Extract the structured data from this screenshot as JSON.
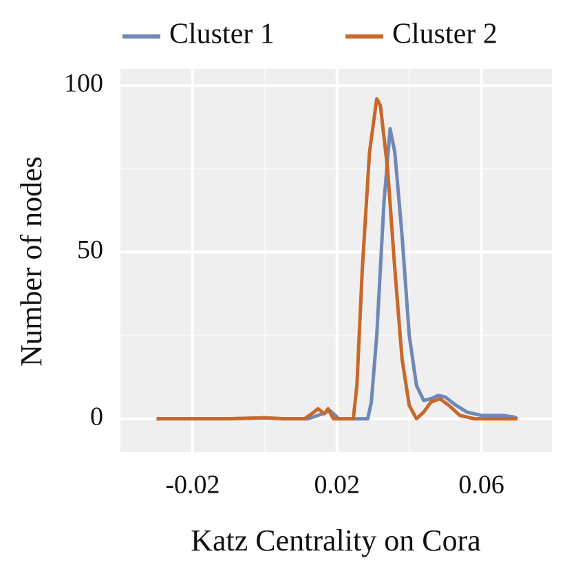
{
  "chart_data": {
    "type": "line",
    "xlabel": "Katz Centrality on Cora",
    "ylabel": "Number of nodes",
    "xlim": [
      -0.04,
      0.0795
    ],
    "ylim": [
      -10,
      105
    ],
    "xticks": [
      -0.02,
      0.02,
      0.06
    ],
    "yticks": [
      0,
      50,
      100
    ],
    "x_minor_ticks": [
      0,
      0.04
    ],
    "y_minor_ticks": [
      25,
      75
    ],
    "grid": true,
    "legend": "top",
    "series": [
      {
        "name": "Cluster 1",
        "color": "#6f88b8",
        "x": [
          -0.03,
          -0.01,
          0,
          0.005,
          0.012,
          0.016,
          0.018,
          0.0195,
          0.0205,
          0.0285,
          0.0295,
          0.031,
          0.033,
          0.0347,
          0.036,
          0.038,
          0.04,
          0.042,
          0.044,
          0.046,
          0.048,
          0.05,
          0.053,
          0.056,
          0.06,
          0.066,
          0.069,
          0.07
        ],
        "values": [
          0,
          0,
          0.3,
          0,
          0,
          1.5,
          2.5,
          1,
          0,
          0,
          5,
          25,
          65,
          87,
          80,
          55,
          25,
          10,
          5.5,
          6,
          7,
          6.5,
          4,
          2,
          1,
          1,
          0.5,
          0
        ]
      },
      {
        "name": "Cluster 2",
        "color": "#c8682a",
        "x": [
          -0.03,
          -0.01,
          0,
          0.005,
          0.011,
          0.013,
          0.0147,
          0.0165,
          0.0175,
          0.019,
          0.0245,
          0.0255,
          0.027,
          0.029,
          0.031,
          0.032,
          0.034,
          0.036,
          0.038,
          0.04,
          0.042,
          0.044,
          0.046,
          0.0485,
          0.051,
          0.054,
          0.058,
          0.07
        ],
        "values": [
          0,
          0,
          0.3,
          0,
          0,
          1.5,
          3,
          1.5,
          3,
          0,
          0,
          10,
          45,
          80,
          96,
          94,
          75,
          45,
          18,
          4,
          0,
          2,
          5,
          6,
          4,
          1,
          0,
          0
        ]
      }
    ]
  }
}
